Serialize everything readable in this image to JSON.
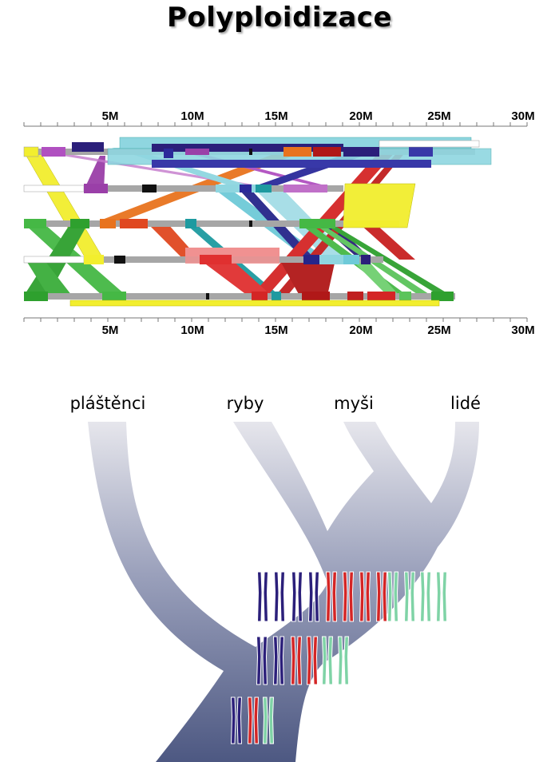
{
  "title": "Polyploidizace",
  "axis": {
    "ticks_top": [
      "5M",
      "10M",
      "15M",
      "20M",
      "25M",
      "30M"
    ],
    "ticks_bottom": [
      "5M",
      "10M",
      "15M",
      "20M",
      "25M",
      "30M"
    ]
  },
  "tree": {
    "taxa": [
      "pláštěnci",
      "ryby",
      "myši",
      "lidé"
    ]
  },
  "colors": {
    "navy": "#2b1f7a",
    "red": "#d42525",
    "green": "#7fd3a6",
    "yellow": "#f2ee2e",
    "cyan": "#8fd6e0",
    "purple": "#9a3fa8",
    "orange": "#e8731e",
    "darkgreen": "#2ea02e"
  }
}
